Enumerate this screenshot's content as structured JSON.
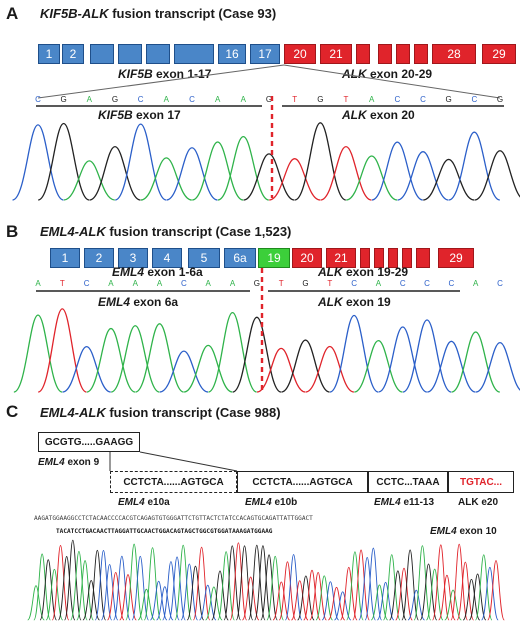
{
  "panel_a": {
    "letter": "A",
    "title_gene": "KIF5B-ALK",
    "title_rest": " fusion transcript (Case 93)",
    "kif5b_exons": [
      "1",
      "2",
      "",
      "",
      "",
      "",
      "16",
      "17"
    ],
    "alk_exons": [
      "20",
      "21",
      "",
      "",
      "",
      "",
      "28",
      "29"
    ],
    "left_label_gene": "KIF5B",
    "left_label_rest": " exon 1-17",
    "right_label_gene": "ALK",
    "right_label_rest": " exon 20-29",
    "bases": [
      "C",
      "G",
      "A",
      "G",
      "C",
      "A",
      "C",
      "A",
      "A",
      "G",
      "T",
      "G",
      "T",
      "A",
      "C",
      "C",
      "G",
      "C",
      "G"
    ],
    "junction_left_gene": "KIF5B",
    "junction_left_rest": " exon 17",
    "junction_right_gene": "ALK",
    "junction_right_rest": " exon 20"
  },
  "panel_b": {
    "letter": "B",
    "title_gene": "EML4-ALK",
    "title_rest": " fusion transcript (Case 1,523)",
    "eml4_exons": [
      "1",
      "2",
      "3",
      "4",
      "5",
      "6a"
    ],
    "fusion_exon": "19",
    "alk_exons": [
      "20",
      "21",
      "",
      "",
      "",
      "",
      "",
      "29"
    ],
    "left_label_gene": "EML4",
    "left_label_rest": " exon 1-6a",
    "right_label_gene": "ALK",
    "right_label_rest": " exon 19-29",
    "bases": [
      "A",
      "T",
      "C",
      "A",
      "A",
      "A",
      "C",
      "A",
      "A",
      "G",
      "T",
      "G",
      "T",
      "C",
      "A",
      "C",
      "C",
      "C",
      "A",
      "C"
    ],
    "junction_left_gene": "EML4",
    "junction_left_rest": " exon 6a",
    "junction_right_gene": "ALK",
    "junction_right_rest": " exon 19"
  },
  "panel_c": {
    "letter": "C",
    "title_gene": "EML4-ALK",
    "title_rest": " fusion transcript (Case 988)",
    "exon9_seq": "GCGTG.....GAAGG",
    "exon9_label_gene": "EML4",
    "exon9_label_rest": " exon 9",
    "boxes": [
      {
        "seq": "CCTCTA......AGTGCA",
        "label_gene": "EML4",
        "label_rest": " e10a"
      },
      {
        "seq": "CCTCTA......AGTGCA",
        "label_gene": "EML4",
        "label_rest": " e10b"
      },
      {
        "seq": "CCTC...TAAA",
        "label_gene": "EML4",
        "label_rest": " e11-13"
      },
      {
        "seq": "TGTAC...",
        "label_gene": "",
        "label_rest": "ALK e20"
      }
    ],
    "seq_top": "AAGATGGAAGGCCTCTACAACCCCACGTCAGAGTGTGGGATTCTGTTACTCTATCCACAGTGCAGATTATTGGACT",
    "seq_bottom": "TACATCCTGACAACTTAGGATTGCAACTGGACAGTAGCTGGCGTGGATAAAGATGGAAG",
    "seq_bottom_label_gene": "EML4",
    "seq_bottom_label_rest": " exon 10"
  },
  "colors": {
    "exon_blue": "#4a86c8",
    "exon_red": "#e0242b",
    "exon_green": "#3ccf3a",
    "trace_A": "#2fb34a",
    "trace_C": "#2b5fc9",
    "trace_G": "#222222",
    "trace_T": "#e0242b",
    "junction": "#e0242b"
  }
}
